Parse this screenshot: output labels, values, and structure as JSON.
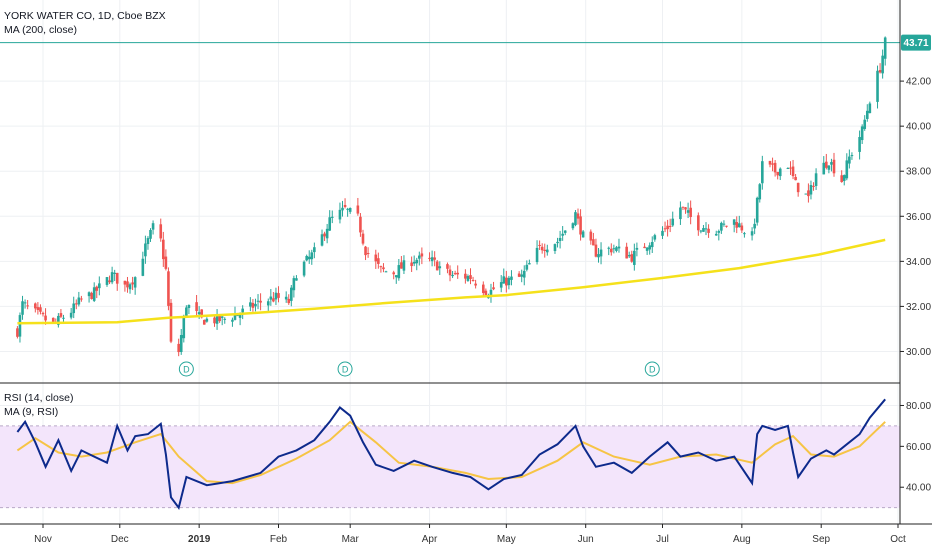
{
  "header": {
    "symbol_line": "YORK WATER CO, 1D, Cboe BZX",
    "ma_line": "MA (200, close)"
  },
  "rsi_header": {
    "rsi_line": "RSI (14, close)",
    "ma_line": "MA (9, RSI)"
  },
  "colors": {
    "up": "#26a69a",
    "down": "#ef5350",
    "ma200": "#f5e11b",
    "rsi": "#0d2a8c",
    "rsi_ma": "#f6c445",
    "rsi_band": "#f3e5fb",
    "price_tag": "#26a69a",
    "grid": "#eef0f3"
  },
  "chart_data": [
    {
      "type": "candlestick",
      "title": "YORK WATER CO, 1D, Cboe BZX",
      "ylim": [
        28.6,
        45.6
      ],
      "y_ticks": [
        "30.00",
        "32.00",
        "34.00",
        "36.00",
        "38.00",
        "40.00",
        "42.00"
      ],
      "last_price": "43.71",
      "last_price_value": 43.71,
      "grid": true,
      "x_ticks": [
        "Nov",
        "Dec",
        "2019",
        "Feb",
        "Mar",
        "Apr",
        "May",
        "Jun",
        "Jul",
        "Aug",
        "Sep",
        "Oct"
      ],
      "dividend_marker_label": "D",
      "dividend_dates": [
        "2018-12-27",
        "2019-02-27",
        "2019-06-27"
      ],
      "close_anchors": [
        [
          "2018-10-22",
          30.9
        ],
        [
          "2018-10-24",
          32.1
        ],
        [
          "2018-10-29",
          31.7
        ],
        [
          "2018-11-05",
          31.2
        ],
        [
          "2018-11-12",
          31.8
        ],
        [
          "2018-11-16",
          32.3
        ],
        [
          "2018-11-21",
          32.6
        ],
        [
          "2018-11-28",
          33.4
        ],
        [
          "2018-12-03",
          32.9
        ],
        [
          "2018-12-07",
          33.3
        ],
        [
          "2018-12-10",
          34.3
        ],
        [
          "2018-12-14",
          35.5
        ],
        [
          "2018-12-17",
          34.9
        ],
        [
          "2018-12-19",
          33.6
        ],
        [
          "2018-12-21",
          30.3
        ],
        [
          "2018-12-24",
          30.0
        ],
        [
          "2018-12-27",
          32.1
        ],
        [
          "2019-01-02",
          31.4
        ],
        [
          "2019-01-10",
          31.4
        ],
        [
          "2019-01-17",
          31.7
        ],
        [
          "2019-01-25",
          32.2
        ],
        [
          "2019-01-31",
          32.4
        ],
        [
          "2019-02-05",
          32.2
        ],
        [
          "2019-02-08",
          33.5
        ],
        [
          "2019-02-15",
          34.4
        ],
        [
          "2019-02-21",
          35.8
        ],
        [
          "2019-02-27",
          36.3
        ],
        [
          "2019-03-04",
          35.9
        ],
        [
          "2019-03-07",
          34.5
        ],
        [
          "2019-03-13",
          33.6
        ],
        [
          "2019-03-18",
          33.5
        ],
        [
          "2019-03-26",
          34.1
        ],
        [
          "2019-04-02",
          34.0
        ],
        [
          "2019-04-09",
          33.4
        ],
        [
          "2019-04-17",
          33.3
        ],
        [
          "2019-04-24",
          32.6
        ],
        [
          "2019-04-30",
          33.1
        ],
        [
          "2019-05-07",
          33.3
        ],
        [
          "2019-05-14",
          34.6
        ],
        [
          "2019-05-21",
          34.9
        ],
        [
          "2019-05-28",
          36.1
        ],
        [
          "2019-05-31",
          35.1
        ],
        [
          "2019-06-05",
          34.4
        ],
        [
          "2019-06-12",
          34.6
        ],
        [
          "2019-06-19",
          34.2
        ],
        [
          "2019-06-26",
          34.9
        ],
        [
          "2019-07-03",
          35.5
        ],
        [
          "2019-07-08",
          36.4
        ],
        [
          "2019-07-15",
          35.6
        ],
        [
          "2019-07-22",
          35.4
        ],
        [
          "2019-07-29",
          35.8
        ],
        [
          "2019-08-05",
          35.1
        ],
        [
          "2019-08-07",
          36.6
        ],
        [
          "2019-08-09",
          38.3
        ],
        [
          "2019-08-14",
          38.0
        ],
        [
          "2019-08-19",
          38.3
        ],
        [
          "2019-08-22",
          37.4
        ],
        [
          "2019-08-27",
          36.8
        ],
        [
          "2019-08-30",
          37.9
        ],
        [
          "2019-09-04",
          38.5
        ],
        [
          "2019-09-09",
          37.6
        ],
        [
          "2019-09-12",
          38.6
        ],
        [
          "2019-09-17",
          39.8
        ],
        [
          "2019-09-20",
          41.2
        ],
        [
          "2019-09-24",
          42.6
        ],
        [
          "2019-09-26",
          43.71
        ]
      ],
      "series": [
        {
          "name": "MA (200, close)",
          "type": "line",
          "points": [
            [
              "2018-10-22",
              31.25
            ],
            [
              "2018-11-30",
              31.3
            ],
            [
              "2018-12-20",
              31.5
            ],
            [
              "2019-01-15",
              31.65
            ],
            [
              "2019-02-15",
              31.9
            ],
            [
              "2019-03-15",
              32.15
            ],
            [
              "2019-04-15",
              32.4
            ],
            [
              "2019-05-01",
              32.5
            ],
            [
              "2019-05-31",
              32.85
            ],
            [
              "2019-06-30",
              33.25
            ],
            [
              "2019-07-31",
              33.7
            ],
            [
              "2019-08-31",
              34.3
            ],
            [
              "2019-09-26",
              34.95
            ]
          ]
        }
      ]
    },
    {
      "type": "line",
      "title": "RSI (14, close)",
      "ylim": [
        22,
        91
      ],
      "y_ticks": [
        "40.00",
        "60.00",
        "80.00"
      ],
      "band": [
        30,
        70
      ],
      "x_ticks": [
        "Nov",
        "Dec",
        "2019",
        "Feb",
        "Mar",
        "Apr",
        "May",
        "Jun",
        "Jul",
        "Aug",
        "Sep",
        "Oct"
      ],
      "series": [
        {
          "name": "RSI (14, close)",
          "points": [
            [
              "2018-10-22",
              67
            ],
            [
              "2018-10-25",
              72
            ],
            [
              "2018-10-29",
              62
            ],
            [
              "2018-11-02",
              50
            ],
            [
              "2018-11-07",
              63
            ],
            [
              "2018-11-12",
              48
            ],
            [
              "2018-11-16",
              58
            ],
            [
              "2018-11-21",
              55
            ],
            [
              "2018-11-26",
              52
            ],
            [
              "2018-11-30",
              70
            ],
            [
              "2018-12-04",
              58
            ],
            [
              "2018-12-07",
              65
            ],
            [
              "2018-12-12",
              66
            ],
            [
              "2018-12-17",
              71
            ],
            [
              "2018-12-19",
              56
            ],
            [
              "2018-12-21",
              35
            ],
            [
              "2018-12-24",
              30
            ],
            [
              "2018-12-27",
              45
            ],
            [
              "2019-01-04",
              41
            ],
            [
              "2019-01-14",
              43
            ],
            [
              "2019-01-25",
              47
            ],
            [
              "2019-02-01",
              55
            ],
            [
              "2019-02-08",
              58
            ],
            [
              "2019-02-15",
              63
            ],
            [
              "2019-02-21",
              72
            ],
            [
              "2019-02-25",
              79
            ],
            [
              "2019-03-01",
              75
            ],
            [
              "2019-03-06",
              62
            ],
            [
              "2019-03-11",
              51
            ],
            [
              "2019-03-18",
              48
            ],
            [
              "2019-03-26",
              53
            ],
            [
              "2019-04-02",
              50
            ],
            [
              "2019-04-10",
              47
            ],
            [
              "2019-04-17",
              45
            ],
            [
              "2019-04-24",
              39
            ],
            [
              "2019-04-30",
              44
            ],
            [
              "2019-05-07",
              46
            ],
            [
              "2019-05-14",
              56
            ],
            [
              "2019-05-21",
              61
            ],
            [
              "2019-05-28",
              70
            ],
            [
              "2019-05-31",
              60
            ],
            [
              "2019-06-05",
              50
            ],
            [
              "2019-06-12",
              52
            ],
            [
              "2019-06-19",
              47
            ],
            [
              "2019-06-26",
              55
            ],
            [
              "2019-07-03",
              62
            ],
            [
              "2019-07-08",
              55
            ],
            [
              "2019-07-15",
              57
            ],
            [
              "2019-07-22",
              53
            ],
            [
              "2019-07-29",
              55
            ],
            [
              "2019-08-05",
              42
            ],
            [
              "2019-08-07",
              66
            ],
            [
              "2019-08-09",
              70
            ],
            [
              "2019-08-14",
              68
            ],
            [
              "2019-08-19",
              70
            ],
            [
              "2019-08-21",
              57
            ],
            [
              "2019-08-23",
              45
            ],
            [
              "2019-08-28",
              54
            ],
            [
              "2019-09-03",
              58
            ],
            [
              "2019-09-06",
              56
            ],
            [
              "2019-09-11",
              61
            ],
            [
              "2019-09-16",
              66
            ],
            [
              "2019-09-20",
              74
            ],
            [
              "2019-09-26",
              83
            ]
          ]
        },
        {
          "name": "MA (9, RSI)",
          "points": [
            [
              "2018-10-22",
              58
            ],
            [
              "2018-10-29",
              64
            ],
            [
              "2018-11-07",
              57
            ],
            [
              "2018-11-16",
              55
            ],
            [
              "2018-11-26",
              57
            ],
            [
              "2018-12-07",
              62
            ],
            [
              "2018-12-17",
              66
            ],
            [
              "2018-12-24",
              55
            ],
            [
              "2019-01-04",
              43
            ],
            [
              "2019-01-14",
              42
            ],
            [
              "2019-01-25",
              46
            ],
            [
              "2019-02-08",
              54
            ],
            [
              "2019-02-21",
              63
            ],
            [
              "2019-03-01",
              72
            ],
            [
              "2019-03-11",
              62
            ],
            [
              "2019-03-20",
              52
            ],
            [
              "2019-04-02",
              50
            ],
            [
              "2019-04-15",
              47
            ],
            [
              "2019-04-24",
              44
            ],
            [
              "2019-05-07",
              45
            ],
            [
              "2019-05-21",
              53
            ],
            [
              "2019-05-31",
              62
            ],
            [
              "2019-06-12",
              55
            ],
            [
              "2019-06-26",
              51
            ],
            [
              "2019-07-08",
              55
            ],
            [
              "2019-07-22",
              56
            ],
            [
              "2019-08-05",
              52
            ],
            [
              "2019-08-14",
              61
            ],
            [
              "2019-08-21",
              65
            ],
            [
              "2019-08-28",
              56
            ],
            [
              "2019-09-06",
              55
            ],
            [
              "2019-09-16",
              60
            ],
            [
              "2019-09-26",
              72
            ]
          ]
        }
      ]
    }
  ]
}
